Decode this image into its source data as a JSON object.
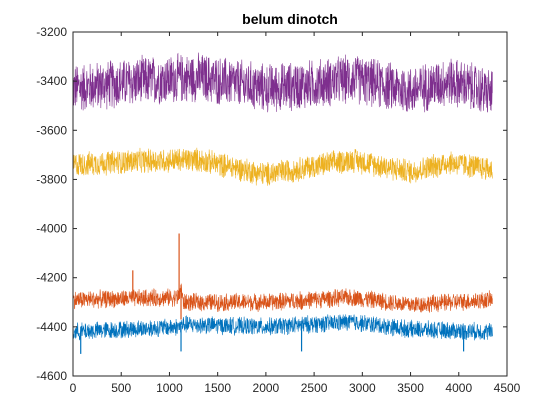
{
  "chart_data": {
    "type": "line",
    "title": "belum dinotch",
    "xlabel": "",
    "ylabel": "",
    "xlim": [
      0,
      4500
    ],
    "ylim": [
      -4600,
      -3200
    ],
    "xticks": [
      0,
      500,
      1000,
      1500,
      2000,
      2500,
      3000,
      3500,
      4000,
      4500
    ],
    "yticks": [
      -4600,
      -4400,
      -4200,
      -4000,
      -3800,
      -3600,
      -3400,
      -3200
    ],
    "xtick_labels": [
      "0",
      "500",
      "1000",
      "1500",
      "2000",
      "2500",
      "3000",
      "3500",
      "4000",
      "4500"
    ],
    "ytick_labels": [
      "-4600",
      "-4400",
      "-4200",
      "-4000",
      "-3800",
      "-3600",
      "-3400",
      "-3200"
    ],
    "grid": false,
    "legend": false,
    "series": [
      {
        "color": "#7E2F8E",
        "x_range": [
          1,
          4350
        ],
        "center": [
          [
            0,
            -3430
          ],
          [
            700,
            -3400
          ],
          [
            1300,
            -3385
          ],
          [
            2000,
            -3430
          ],
          [
            2450,
            -3415
          ],
          [
            2900,
            -3390
          ],
          [
            3500,
            -3440
          ],
          [
            3900,
            -3400
          ],
          [
            4350,
            -3450
          ]
        ],
        "band_halfwidth": 110
      },
      {
        "color": "#EDB120",
        "x_range": [
          1,
          4350
        ],
        "center": [
          [
            0,
            -3740
          ],
          [
            700,
            -3725
          ],
          [
            1300,
            -3720
          ],
          [
            2000,
            -3780
          ],
          [
            2900,
            -3720
          ],
          [
            3500,
            -3770
          ],
          [
            3900,
            -3730
          ],
          [
            4350,
            -3760
          ]
        ],
        "band_halfwidth": 55
      },
      {
        "color": "#D95319",
        "x_range": [
          1,
          4350
        ],
        "center": [
          [
            0,
            -4290
          ],
          [
            1100,
            -4280
          ],
          [
            1120,
            -4230
          ],
          [
            1140,
            -4300
          ],
          [
            2000,
            -4300
          ],
          [
            2900,
            -4280
          ],
          [
            3500,
            -4310
          ],
          [
            4350,
            -4290
          ]
        ],
        "band_halfwidth": 40,
        "spikes": [
          [
            1100,
            -4020
          ],
          [
            620,
            -4170
          ],
          [
            1120,
            -4370
          ],
          [
            2370,
            -4330
          ]
        ]
      },
      {
        "color": "#0072BD",
        "x_range": [
          1,
          4350
        ],
        "center": [
          [
            0,
            -4420
          ],
          [
            1100,
            -4400
          ],
          [
            1140,
            -4390
          ],
          [
            2000,
            -4400
          ],
          [
            2900,
            -4380
          ],
          [
            3500,
            -4410
          ],
          [
            4350,
            -4420
          ]
        ],
        "band_halfwidth": 40,
        "spikes": [
          [
            1120,
            -4500
          ],
          [
            2370,
            -4500
          ],
          [
            4050,
            -4500
          ],
          [
            80,
            -4510
          ]
        ]
      }
    ]
  }
}
